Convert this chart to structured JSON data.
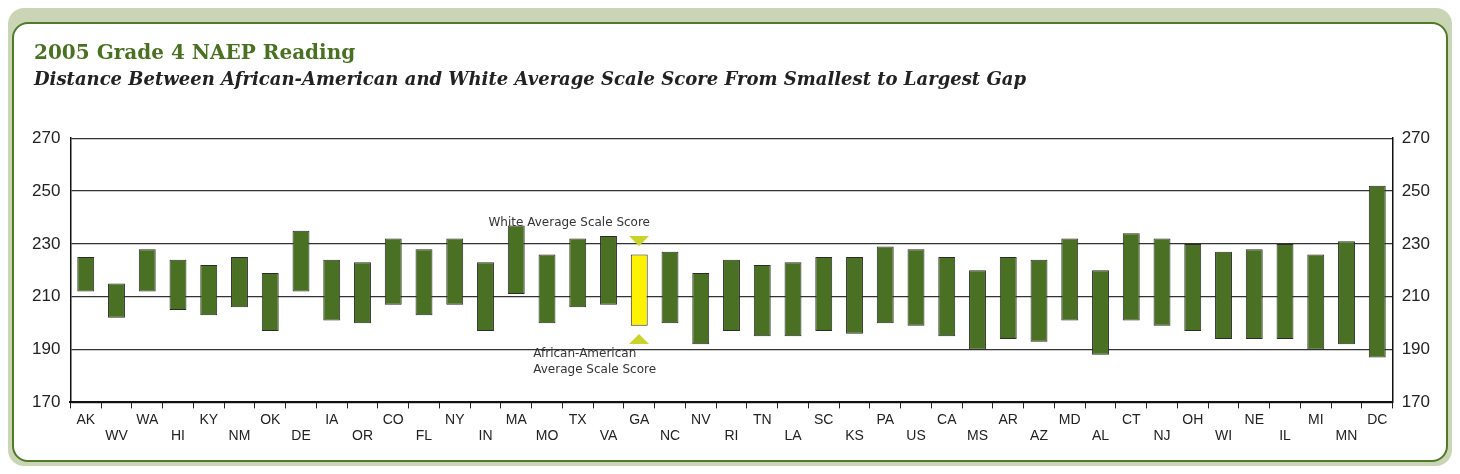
{
  "chart_data": {
    "type": "bar",
    "title": "2005 Grade 4 NAEP Reading",
    "subtitle": "Distance Between African-American and White Average Scale Score From Smallest to Largest Gap",
    "categories": [
      "AK",
      "WV",
      "WA",
      "HI",
      "KY",
      "NM",
      "OK",
      "DE",
      "IA",
      "OR",
      "CO",
      "FL",
      "NY",
      "IN",
      "MA",
      "MO",
      "TX",
      "VA",
      "GA",
      "NC",
      "NV",
      "RI",
      "TN",
      "LA",
      "SC",
      "KS",
      "PA",
      "US",
      "CA",
      "MS",
      "AR",
      "AZ",
      "MD",
      "AL",
      "CT",
      "NJ",
      "OH",
      "WI",
      "NE",
      "IL",
      "MI",
      "MN",
      "DC"
    ],
    "base": [
      212,
      202,
      212,
      205,
      203,
      206,
      197,
      212,
      201,
      200,
      207,
      203,
      207,
      197,
      211,
      200,
      206,
      207,
      199,
      200,
      192,
      197,
      195,
      195,
      197,
      196,
      200,
      199,
      195,
      190,
      194,
      193,
      201,
      188,
      201,
      199,
      197,
      194,
      194,
      194,
      190,
      192,
      187
    ],
    "values": [
      13,
      13,
      16,
      19,
      19,
      19,
      22,
      23,
      23,
      23,
      25,
      25,
      25,
      26,
      26,
      26,
      26,
      26,
      27,
      27,
      27,
      27,
      27,
      28,
      28,
      29,
      29,
      29,
      30,
      30,
      31,
      31,
      31,
      32,
      33,
      33,
      33,
      33,
      34,
      36,
      36,
      39,
      65
    ],
    "colors": [
      "#4a7023",
      "#4a7023",
      "#4a7023",
      "#4a7023",
      "#4a7023",
      "#4a7023",
      "#4a7023",
      "#4a7023",
      "#4a7023",
      "#4a7023",
      "#4a7023",
      "#4a7023",
      "#4a7023",
      "#4a7023",
      "#4a7023",
      "#4a7023",
      "#4a7023",
      "#4a7023",
      "#fff200",
      "#4a7023",
      "#4a7023",
      "#4a7023",
      "#4a7023",
      "#4a7023",
      "#4a7023",
      "#4a7023",
      "#4a7023",
      "#4a7023",
      "#4a7023",
      "#4a7023",
      "#4a7023",
      "#4a7023",
      "#4a7023",
      "#4a7023",
      "#4a7023",
      "#4a7023",
      "#4a7023",
      "#4a7023",
      "#4a7023",
      "#4a7023",
      "#4a7023",
      "#4a7023",
      "#4a7023"
    ],
    "ylim": [
      170,
      270
    ],
    "yticks": [
      170,
      190,
      210,
      230,
      250,
      270
    ],
    "y2lim": [
      170,
      270
    ],
    "y2ticks": [
      170,
      190,
      210,
      230,
      250,
      270
    ],
    "grid": "y",
    "legend": false,
    "annotations": [
      {
        "text": "White Average Scale Score",
        "x": "GA",
        "y": 226
      },
      {
        "text": "African-American Average Scale Score",
        "x": "GA",
        "y": 199
      }
    ]
  }
}
